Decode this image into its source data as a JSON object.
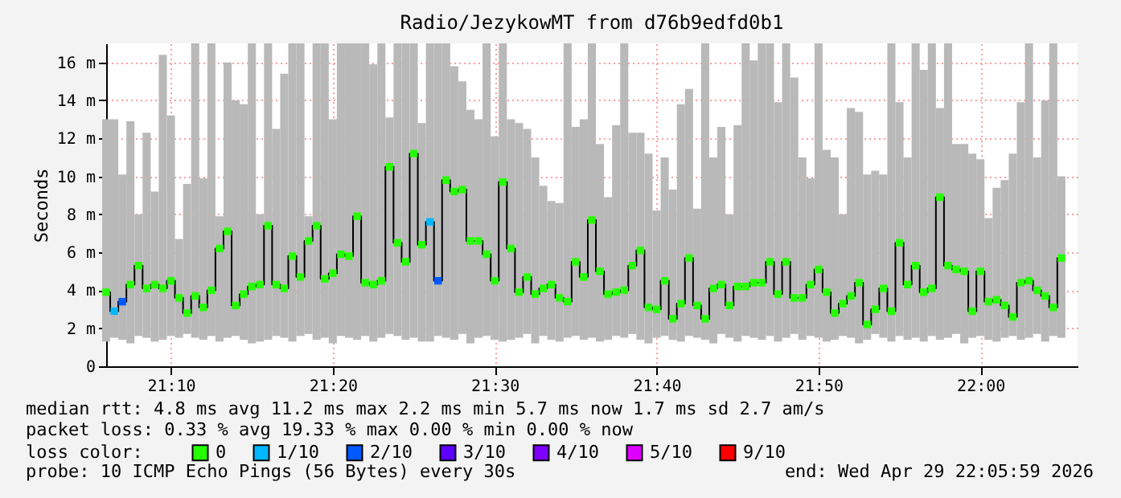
{
  "chart_data": {
    "type": "step",
    "title": "Radio/JezykowMT from d76b9edfd0b1",
    "ylabel": "Seconds",
    "legend_title": "loss color:",
    "legend": "bottom",
    "grid": true,
    "marker": "square",
    "xlim": [
      "2026-04-29T21:06:00",
      "2026-04-29T22:06:00"
    ],
    "xticks": [
      {
        "value": "2026-04-29T21:10:00",
        "label": "21:10"
      },
      {
        "value": "2026-04-29T21:20:00",
        "label": "21:20"
      },
      {
        "value": "2026-04-29T21:30:00",
        "label": "21:30"
      },
      {
        "value": "2026-04-29T21:40:00",
        "label": "21:40"
      },
      {
        "value": "2026-04-29T21:50:00",
        "label": "21:50"
      },
      {
        "value": "2026-04-29T22:00:00",
        "label": "22:00"
      }
    ],
    "ylim": [
      0,
      17
    ],
    "yticks": [
      0,
      {
        "value": 2,
        "label": "2 m"
      },
      {
        "value": 4,
        "label": "4 m"
      },
      {
        "value": 6,
        "label": "6 m"
      },
      {
        "value": 8,
        "label": "8 m"
      },
      {
        "value": 10,
        "label": "10 m"
      },
      {
        "value": 12,
        "label": "12 m"
      },
      {
        "value": 14,
        "label": "14 m"
      },
      {
        "value": 16,
        "label": "16 m"
      }
    ],
    "x": [
      "2026-04-29T21:06:00",
      "2026-04-29T21:06:30",
      "2026-04-29T21:07:00",
      "2026-04-29T21:07:30",
      "2026-04-29T21:08:00",
      "2026-04-29T21:08:30",
      "2026-04-29T21:09:00",
      "2026-04-29T21:09:30",
      "2026-04-29T21:10:00",
      "2026-04-29T21:10:30",
      "2026-04-29T21:11:00",
      "2026-04-29T21:11:30",
      "2026-04-29T21:12:00",
      "2026-04-29T21:12:30",
      "2026-04-29T21:13:00",
      "2026-04-29T21:13:30",
      "2026-04-29T21:14:00",
      "2026-04-29T21:14:30",
      "2026-04-29T21:15:00",
      "2026-04-29T21:15:30",
      "2026-04-29T21:16:00",
      "2026-04-29T21:16:30",
      "2026-04-29T21:17:00",
      "2026-04-29T21:17:30",
      "2026-04-29T21:18:00",
      "2026-04-29T21:18:30",
      "2026-04-29T21:19:00",
      "2026-04-29T21:19:30",
      "2026-04-29T21:20:00",
      "2026-04-29T21:20:30",
      "2026-04-29T21:21:00",
      "2026-04-29T21:21:30",
      "2026-04-29T21:22:00",
      "2026-04-29T21:22:30",
      "2026-04-29T21:23:00",
      "2026-04-29T21:23:30",
      "2026-04-29T21:24:00",
      "2026-04-29T21:24:30",
      "2026-04-29T21:25:00",
      "2026-04-29T21:25:30",
      "2026-04-29T21:26:00",
      "2026-04-29T21:26:30",
      "2026-04-29T21:27:00",
      "2026-04-29T21:27:30",
      "2026-04-29T21:28:00",
      "2026-04-29T21:28:30",
      "2026-04-29T21:29:00",
      "2026-04-29T21:29:30",
      "2026-04-29T21:30:00",
      "2026-04-29T21:30:30",
      "2026-04-29T21:31:00",
      "2026-04-29T21:31:30",
      "2026-04-29T21:32:00",
      "2026-04-29T21:32:30",
      "2026-04-29T21:33:00",
      "2026-04-29T21:33:30",
      "2026-04-29T21:34:00",
      "2026-04-29T21:34:30",
      "2026-04-29T21:35:00",
      "2026-04-29T21:35:30",
      "2026-04-29T21:36:00",
      "2026-04-29T21:36:30",
      "2026-04-29T21:37:00",
      "2026-04-29T21:37:30",
      "2026-04-29T21:38:00",
      "2026-04-29T21:38:30",
      "2026-04-29T21:39:00",
      "2026-04-29T21:39:30",
      "2026-04-29T21:40:00",
      "2026-04-29T21:40:30",
      "2026-04-29T21:41:00",
      "2026-04-29T21:41:30",
      "2026-04-29T21:42:00",
      "2026-04-29T21:42:30",
      "2026-04-29T21:43:00",
      "2026-04-29T21:43:30",
      "2026-04-29T21:44:00",
      "2026-04-29T21:44:30",
      "2026-04-29T21:45:00",
      "2026-04-29T21:45:30",
      "2026-04-29T21:46:00",
      "2026-04-29T21:46:30",
      "2026-04-29T21:47:00",
      "2026-04-29T21:47:30",
      "2026-04-29T21:48:00",
      "2026-04-29T21:48:30",
      "2026-04-29T21:49:00",
      "2026-04-29T21:49:30",
      "2026-04-29T21:50:00",
      "2026-04-29T21:50:30",
      "2026-04-29T21:51:00",
      "2026-04-29T21:51:30",
      "2026-04-29T21:52:00",
      "2026-04-29T21:52:30",
      "2026-04-29T21:53:00",
      "2026-04-29T21:53:30",
      "2026-04-29T21:54:00",
      "2026-04-29T21:54:30",
      "2026-04-29T21:55:00",
      "2026-04-29T21:55:30",
      "2026-04-29T21:56:00",
      "2026-04-29T21:56:30",
      "2026-04-29T21:57:00",
      "2026-04-29T21:57:30",
      "2026-04-29T21:58:00",
      "2026-04-29T21:58:30",
      "2026-04-29T21:59:00",
      "2026-04-29T21:59:30",
      "2026-04-29T22:00:00",
      "2026-04-29T22:00:30",
      "2026-04-29T22:01:00",
      "2026-04-29T22:01:30",
      "2026-04-29T22:02:00",
      "2026-04-29T22:02:30",
      "2026-04-29T22:03:00",
      "2026-04-29T22:03:30",
      "2026-04-29T22:04:00",
      "2026-04-29T22:04:30",
      "2026-04-29T22:05:00"
    ],
    "series": [
      {
        "type": "step",
        "color": "#000000",
        "marker": "none",
        "values": [
          3.9,
          2.9,
          3.4,
          4.3,
          5.3,
          4.1,
          4.3,
          4.1,
          4.5,
          3.6,
          2.8,
          3.7,
          3.1,
          4.0,
          6.2,
          7.1,
          3.2,
          3.8,
          4.2,
          4.3,
          7.4,
          4.3,
          4.1,
          5.8,
          4.7,
          6.6,
          7.4,
          4.6,
          4.9,
          5.9,
          5.8,
          7.9,
          4.4,
          4.3,
          4.5,
          10.5,
          6.5,
          5.5,
          11.2,
          6.4,
          7.6,
          4.5,
          9.8,
          9.2,
          9.3,
          6.6,
          6.6,
          5.9,
          4.5,
          9.7,
          6.2,
          3.9,
          4.7,
          3.8,
          4.1,
          4.3,
          3.6,
          3.4,
          5.5,
          4.7,
          7.7,
          5.0,
          3.8,
          3.9,
          4.0,
          5.3,
          6.1,
          3.1,
          3.0,
          4.5,
          2.5,
          3.3,
          5.7,
          3.2,
          2.5,
          4.1,
          4.3,
          3.2,
          4.2,
          4.2,
          4.4,
          4.4,
          5.5,
          3.8,
          5.5,
          3.6,
          3.6,
          4.3,
          5.1,
          3.9,
          2.8,
          3.3,
          3.7,
          4.4,
          2.2,
          3.0,
          4.1,
          2.9,
          6.5,
          4.3,
          5.3,
          3.9,
          4.1,
          8.9,
          5.3,
          5.1,
          5.0,
          2.9,
          5.0,
          3.4,
          3.5,
          3.2,
          2.6,
          4.4,
          4.5,
          4.0,
          3.7,
          3.1,
          5.7
        ],
        "lower": [
          1.3,
          1.5,
          1.4,
          1.2,
          1.6,
          1.5,
          1.3,
          1.4,
          1.6,
          1.5,
          1.7,
          1.5,
          1.4,
          1.6,
          1.3,
          1.5,
          1.6,
          1.4,
          1.2,
          1.3,
          1.4,
          1.6,
          1.5,
          1.3,
          1.6,
          1.7,
          1.4,
          1.5,
          1.2,
          1.6,
          1.5,
          1.4,
          1.6,
          1.3,
          1.5,
          1.7,
          1.6,
          1.4,
          1.5,
          1.3,
          1.3,
          1.6,
          1.5,
          1.4,
          1.7,
          1.2,
          1.5,
          1.6,
          1.4,
          1.3,
          1.4,
          1.5,
          1.7,
          1.2,
          1.6,
          1.4,
          1.3,
          1.5,
          1.6,
          1.4,
          1.5,
          1.3,
          1.4,
          1.6,
          1.5,
          1.7,
          1.4,
          1.2,
          1.5,
          1.6,
          1.4,
          1.3,
          1.6,
          1.5,
          1.4,
          1.2,
          1.7,
          1.5,
          1.3,
          1.6,
          1.5,
          1.4,
          1.6,
          1.3,
          1.5,
          1.7,
          1.4,
          1.6,
          1.5,
          1.3,
          1.4,
          1.6,
          1.5,
          1.2,
          1.4,
          1.7,
          1.5,
          1.3,
          1.6,
          1.4,
          1.5,
          1.3,
          1.6,
          1.4,
          1.5,
          1.7,
          1.2,
          1.5,
          1.6,
          1.4,
          1.3,
          1.5,
          1.6,
          1.4,
          1.5,
          1.7,
          1.3,
          1.6,
          1.5
        ],
        "upper": [
          13.0,
          13.0,
          10.1,
          12.9,
          8.0,
          12.3,
          9.2,
          16.4,
          13.2,
          6.7,
          9.6,
          17,
          9.9,
          17,
          7.9,
          16.0,
          14.0,
          13.8,
          17,
          8.0,
          17,
          12.5,
          15.4,
          17,
          17,
          7.9,
          17,
          17,
          13.0,
          17,
          17,
          17,
          17,
          15.9,
          17,
          13.1,
          17,
          17,
          17,
          12.8,
          17,
          17,
          17,
          15.8,
          15.0,
          13.5,
          13.0,
          17,
          12.1,
          17,
          13.0,
          12.8,
          12.5,
          11.0,
          9.5,
          8.7,
          8.6,
          17,
          12.6,
          13.0,
          17,
          11.7,
          8.9,
          12.7,
          17,
          12.3,
          12.3,
          11.2,
          8.2,
          11.0,
          9.3,
          13.8,
          14.6,
          8.3,
          17,
          11.0,
          12.6,
          8.0,
          12.7,
          17,
          16.1,
          17,
          17,
          13.9,
          17,
          15.2,
          11.0,
          9.9,
          17,
          11.4,
          11.0,
          8.0,
          13.6,
          13.4,
          10.1,
          10.3,
          10.1,
          17,
          13.9,
          11.0,
          17,
          15.6,
          17,
          13.6,
          17,
          11.7,
          11.7,
          11.2,
          10.9,
          7.8,
          9.4,
          9.8,
          11.2,
          13.9,
          17,
          11.0,
          14.0,
          17,
          10.0
        ]
      },
      {
        "type": "scatter",
        "name": "0",
        "color": "#26ff00",
        "values": [
          3.9,
          null,
          null,
          4.3,
          5.3,
          4.1,
          4.3,
          4.1,
          4.5,
          3.6,
          2.8,
          3.7,
          3.1,
          4.0,
          6.2,
          7.1,
          3.2,
          3.8,
          4.2,
          4.3,
          7.4,
          4.3,
          4.1,
          5.8,
          4.7,
          6.6,
          7.4,
          4.6,
          4.9,
          5.9,
          5.8,
          7.9,
          4.4,
          4.3,
          4.5,
          10.5,
          6.5,
          5.5,
          11.2,
          6.4,
          null,
          null,
          9.8,
          9.2,
          9.3,
          6.6,
          6.6,
          5.9,
          4.5,
          9.7,
          6.2,
          3.9,
          4.7,
          3.8,
          4.1,
          4.3,
          3.6,
          3.4,
          5.5,
          4.7,
          7.7,
          5.0,
          3.8,
          3.9,
          4.0,
          5.3,
          6.1,
          3.1,
          3.0,
          4.5,
          2.5,
          3.3,
          5.7,
          3.2,
          2.5,
          4.1,
          4.3,
          3.2,
          4.2,
          4.2,
          4.4,
          4.4,
          5.5,
          3.8,
          5.5,
          3.6,
          3.6,
          4.3,
          5.1,
          3.9,
          2.8,
          3.3,
          3.7,
          4.4,
          2.2,
          3.0,
          4.1,
          2.9,
          6.5,
          4.3,
          5.3,
          3.9,
          4.1,
          8.9,
          5.3,
          5.1,
          5.0,
          2.9,
          5.0,
          3.4,
          3.5,
          3.2,
          2.6,
          4.4,
          4.5,
          4.0,
          3.7,
          3.1,
          5.7
        ]
      },
      {
        "type": "scatter",
        "name": "1/10",
        "color": "#00b8ff",
        "x": [
          "2026-04-29T21:06:30",
          "2026-04-29T21:26:00"
        ],
        "values": [
          2.9,
          7.6
        ]
      },
      {
        "type": "scatter",
        "name": "2/10",
        "color": "#0059ff",
        "x": [
          "2026-04-29T21:07:00",
          "2026-04-29T21:26:30"
        ],
        "values": [
          3.4,
          4.5
        ]
      },
      {
        "type": "scatter",
        "name": "3/10",
        "color": "#5e00ff",
        "values": [
          null,
          null,
          null,
          null,
          null,
          null,
          null,
          null,
          null,
          null,
          null,
          null,
          null,
          null,
          null,
          null,
          null,
          null,
          null,
          null,
          null,
          null,
          null,
          null,
          null,
          null,
          null,
          null,
          null,
          null,
          null,
          null,
          null,
          null,
          null,
          null,
          null,
          null,
          null,
          null,
          null,
          null,
          null,
          null,
          null,
          null,
          null,
          null,
          null,
          null,
          null,
          null,
          null,
          null,
          null,
          null,
          null,
          null,
          null,
          null,
          null,
          null,
          null,
          null,
          null,
          null,
          null,
          null,
          null,
          null,
          null,
          null,
          null,
          null,
          null,
          null,
          null,
          null,
          null,
          null,
          null,
          null,
          null,
          null,
          null,
          null,
          null,
          null,
          null,
          null,
          null,
          null,
          null,
          null,
          null,
          null,
          null,
          null,
          null,
          null,
          null,
          null,
          null,
          null,
          null,
          null,
          null,
          null,
          null,
          null,
          null,
          null,
          null,
          null,
          null,
          null,
          null,
          null,
          null
        ]
      },
      {
        "type": "scatter",
        "name": "4/10",
        "color": "#7e00ff",
        "values": [
          null,
          null,
          null,
          null,
          null,
          null,
          null,
          null,
          null,
          null,
          null,
          null,
          null,
          null,
          null,
          null,
          null,
          null,
          null,
          null,
          null,
          null,
          null,
          null,
          null,
          null,
          null,
          null,
          null,
          null,
          null,
          null,
          null,
          null,
          null,
          null,
          null,
          null,
          null,
          null,
          null,
          null,
          null,
          null,
          null,
          null,
          null,
          null,
          null,
          null,
          null,
          null,
          null,
          null,
          null,
          null,
          null,
          null,
          null,
          null,
          null,
          null,
          null,
          null,
          null,
          null,
          null,
          null,
          null,
          null,
          null,
          null,
          null,
          null,
          null,
          null,
          null,
          null,
          null,
          null,
          null,
          null,
          null,
          null,
          null,
          null,
          null,
          null,
          null,
          null,
          null,
          null,
          null,
          null,
          null,
          null,
          null,
          null,
          null,
          null,
          null,
          null,
          null,
          null,
          null,
          null,
          null,
          null,
          null,
          null,
          null,
          null,
          null,
          null,
          null,
          null,
          null,
          null,
          null
        ]
      },
      {
        "type": "scatter",
        "name": "5/10",
        "color": "#dd00ff",
        "values": [
          null,
          null,
          null,
          null,
          null,
          null,
          null,
          null,
          null,
          null,
          null,
          null,
          null,
          null,
          null,
          null,
          null,
          null,
          null,
          null,
          null,
          null,
          null,
          null,
          null,
          null,
          null,
          null,
          null,
          null,
          null,
          null,
          null,
          null,
          null,
          null,
          null,
          null,
          null,
          null,
          null,
          null,
          null,
          null,
          null,
          null,
          null,
          null,
          null,
          null,
          null,
          null,
          null,
          null,
          null,
          null,
          null,
          null,
          null,
          null,
          null,
          null,
          null,
          null,
          null,
          null,
          null,
          null,
          null,
          null,
          null,
          null,
          null,
          null,
          null,
          null,
          null,
          null,
          null,
          null,
          null,
          null,
          null,
          null,
          null,
          null,
          null,
          null,
          null,
          null,
          null,
          null,
          null,
          null,
          null,
          null,
          null,
          null,
          null,
          null,
          null,
          null,
          null,
          null,
          null,
          null,
          null,
          null,
          null,
          null,
          null,
          null,
          null,
          null,
          null,
          null,
          null,
          null,
          null
        ]
      },
      {
        "type": "scatter",
        "name": "9/10",
        "color": "#ff0000",
        "values": [
          null,
          null,
          null,
          null,
          null,
          null,
          null,
          null,
          null,
          null,
          null,
          null,
          null,
          null,
          null,
          null,
          null,
          null,
          null,
          null,
          null,
          null,
          null,
          null,
          null,
          null,
          null,
          null,
          null,
          null,
          null,
          null,
          null,
          null,
          null,
          null,
          null,
          null,
          null,
          null,
          null,
          null,
          null,
          null,
          null,
          null,
          null,
          null,
          null,
          null,
          null,
          null,
          null,
          null,
          null,
          null,
          null,
          null,
          null,
          null,
          null,
          null,
          null,
          null,
          null,
          null,
          null,
          null,
          null,
          null,
          null,
          null,
          null,
          null,
          null,
          null,
          null,
          null,
          null,
          null,
          null,
          null,
          null,
          null,
          null,
          null,
          null,
          null,
          null,
          null,
          null,
          null,
          null,
          null,
          null,
          null,
          null,
          null,
          null,
          null,
          null,
          null,
          null,
          null,
          null,
          null,
          null,
          null,
          null,
          null,
          null,
          null,
          null,
          null,
          null,
          null,
          null,
          null,
          null
        ]
      }
    ],
    "annotations": [
      "median rtt:  4.8 ms avg  11.2 ms max  2.2 ms min  5.7 ms now  1.7 ms sd  2.7   am/s",
      "packet loss: 0.33 % avg  19.33 % max  0.00 % min  0.00 % now",
      "probe:       10 ICMP Echo Pings (56 Bytes) every 30s",
      "end: Wed Apr 29 22:05:59 2026"
    ]
  }
}
